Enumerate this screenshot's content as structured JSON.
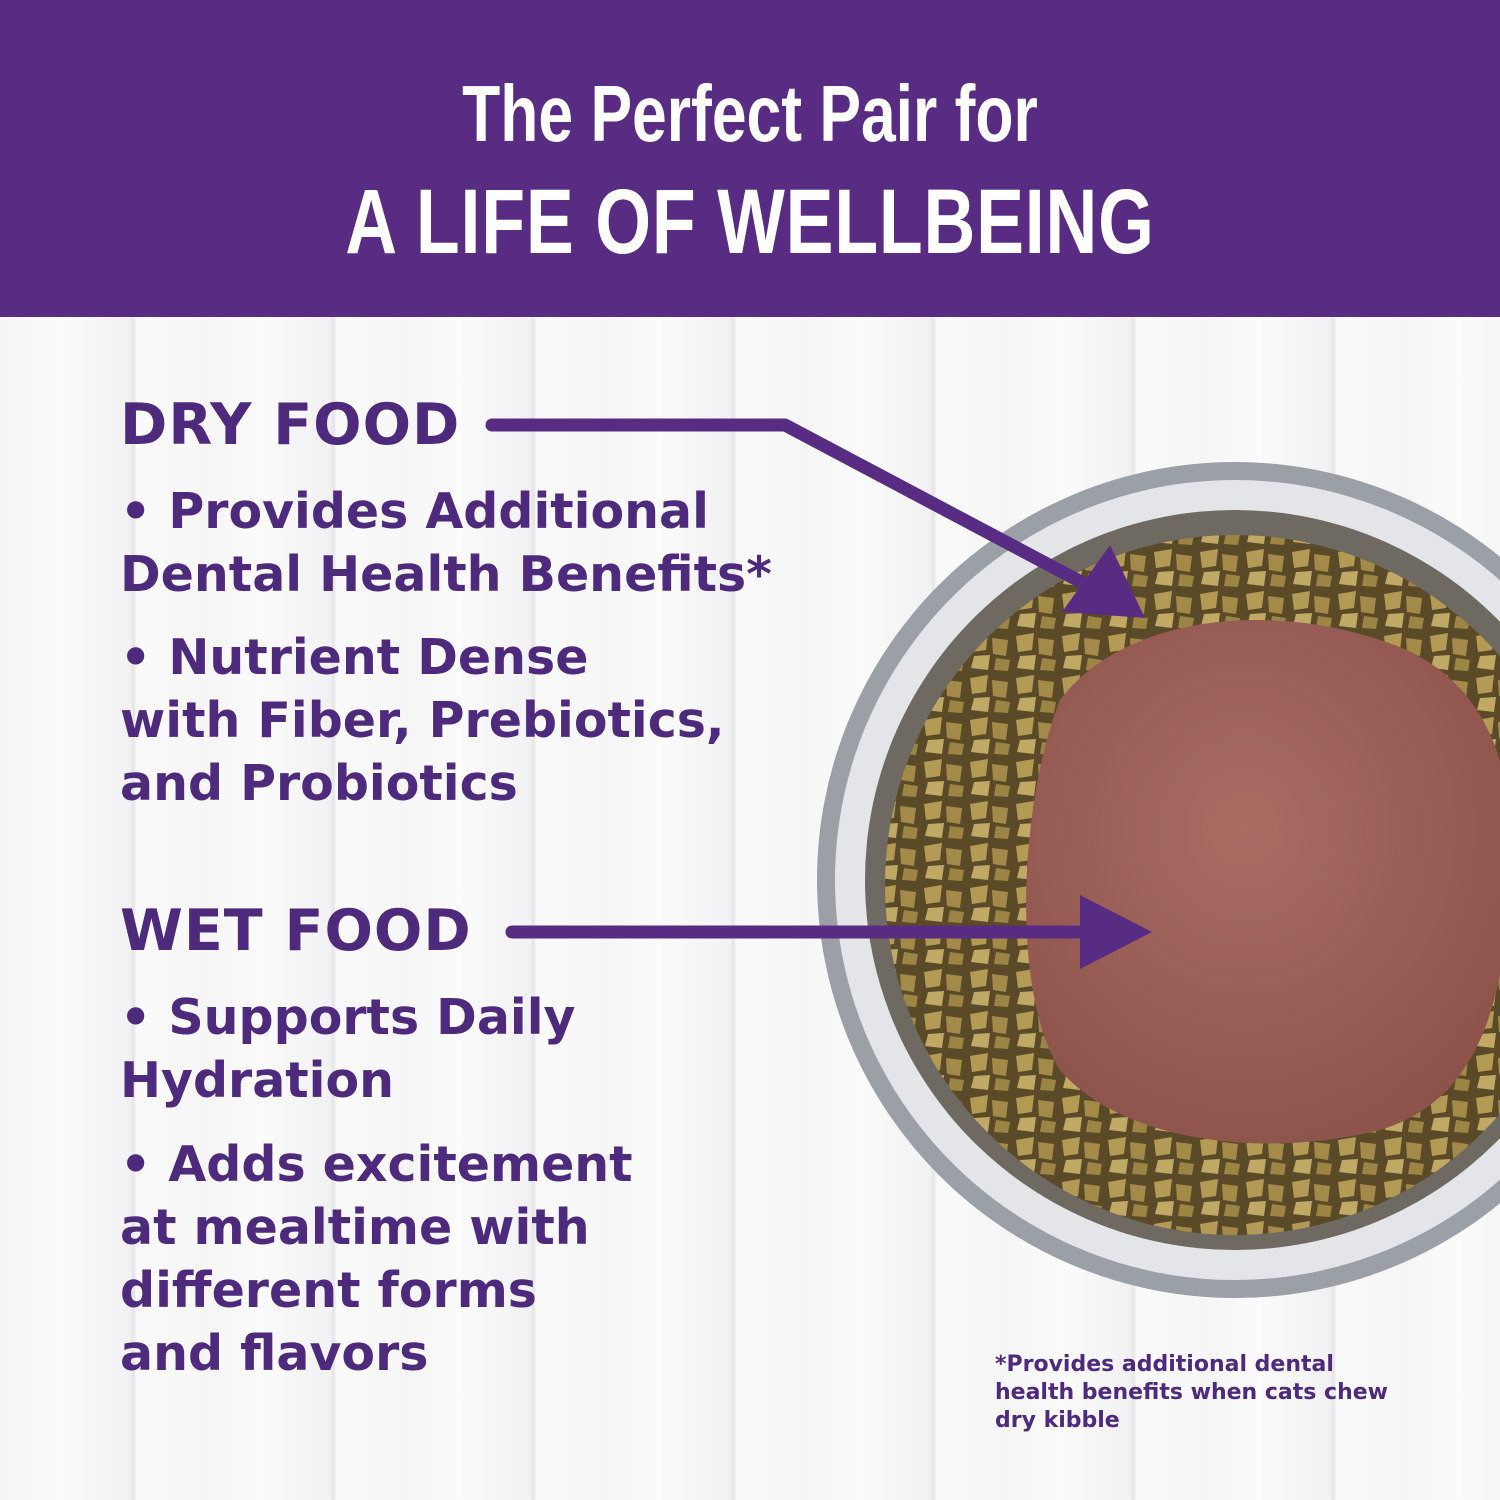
{
  "header": {
    "line1": "The Perfect Pair for",
    "line2": "A LIFE OF WELLBEING",
    "background": "#582c83"
  },
  "dry_food": {
    "heading": "DRY FOOD",
    "bullets": [
      "• Provides Additional\nDental Health Benefits*",
      "• Nutrient Dense\nwith Fiber, Prebiotics,\nand Probiotics"
    ]
  },
  "wet_food": {
    "heading": "WET FOOD",
    "bullets": [
      "• Supports Daily\nHydration",
      "• Adds excitement\nat mealtime with\ndifferent forms\nand flavors"
    ]
  },
  "footnote": "*Provides additional dental health benefits when cats chew dry kibble",
  "colors": {
    "text": "#4d2a7c",
    "arrow": "#582c83"
  }
}
